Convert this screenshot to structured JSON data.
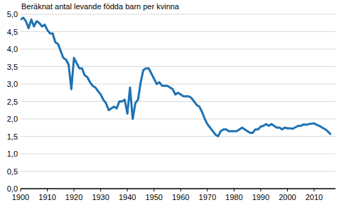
{
  "chart_data": {
    "type": "line",
    "title": "Beräknat antal levande födda barn per kvinna",
    "x": [
      1900,
      1901,
      1902,
      1903,
      1904,
      1905,
      1906,
      1907,
      1908,
      1909,
      1910,
      1911,
      1912,
      1913,
      1914,
      1915,
      1916,
      1917,
      1918,
      1919,
      1920,
      1921,
      1922,
      1923,
      1924,
      1925,
      1926,
      1927,
      1928,
      1929,
      1930,
      1931,
      1932,
      1933,
      1934,
      1935,
      1936,
      1937,
      1938,
      1939,
      1940,
      1941,
      1942,
      1943,
      1944,
      1945,
      1946,
      1947,
      1948,
      1949,
      1950,
      1951,
      1952,
      1953,
      1954,
      1955,
      1956,
      1957,
      1958,
      1959,
      1960,
      1961,
      1962,
      1963,
      1964,
      1965,
      1966,
      1967,
      1968,
      1969,
      1970,
      1971,
      1972,
      1973,
      1974,
      1975,
      1976,
      1977,
      1978,
      1979,
      1980,
      1981,
      1982,
      1983,
      1984,
      1985,
      1986,
      1987,
      1988,
      1989,
      1990,
      1991,
      1992,
      1993,
      1994,
      1995,
      1996,
      1997,
      1998,
      1999,
      2000,
      2001,
      2002,
      2003,
      2004,
      2005,
      2006,
      2007,
      2008,
      2009,
      2010,
      2011,
      2012,
      2013,
      2014,
      2015,
      2016
    ],
    "values": [
      4.85,
      4.9,
      4.8,
      4.6,
      4.85,
      4.65,
      4.8,
      4.75,
      4.65,
      4.7,
      4.55,
      4.45,
      4.45,
      4.2,
      4.15,
      3.95,
      3.75,
      3.7,
      3.55,
      2.85,
      3.75,
      3.6,
      3.45,
      3.45,
      3.25,
      3.2,
      3.05,
      2.95,
      2.9,
      2.8,
      2.7,
      2.55,
      2.45,
      2.25,
      2.3,
      2.35,
      2.3,
      2.5,
      2.5,
      2.55,
      2.15,
      2.9,
      2.0,
      2.45,
      2.55,
      3.05,
      3.4,
      3.45,
      3.45,
      3.3,
      3.15,
      3.0,
      3.05,
      2.95,
      2.95,
      2.95,
      2.9,
      2.85,
      2.7,
      2.75,
      2.7,
      2.65,
      2.65,
      2.65,
      2.6,
      2.5,
      2.4,
      2.35,
      2.2,
      2.0,
      1.85,
      1.75,
      1.65,
      1.55,
      1.5,
      1.65,
      1.7,
      1.7,
      1.65,
      1.65,
      1.65,
      1.65,
      1.7,
      1.75,
      1.7,
      1.65,
      1.6,
      1.6,
      1.7,
      1.7,
      1.78,
      1.8,
      1.85,
      1.8,
      1.85,
      1.8,
      1.75,
      1.75,
      1.7,
      1.75,
      1.73,
      1.73,
      1.72,
      1.76,
      1.8,
      1.8,
      1.84,
      1.83,
      1.85,
      1.86,
      1.87,
      1.83,
      1.8,
      1.75,
      1.71,
      1.65,
      1.57
    ],
    "color": "#1f72b3",
    "xlim": [
      1900,
      2018
    ],
    "xticks": [
      1900,
      1910,
      1920,
      1930,
      1940,
      1950,
      1960,
      1970,
      1980,
      1990,
      2000,
      2010
    ],
    "ylim": [
      0,
      5
    ],
    "yticks": [
      {
        "value": 0,
        "label": "0,0"
      },
      {
        "value": 0.5,
        "label": "0,5"
      },
      {
        "value": 1,
        "label": "1,0"
      },
      {
        "value": 1.5,
        "label": "1,5"
      },
      {
        "value": 2,
        "label": "2,0"
      },
      {
        "value": 2.5,
        "label": "2,5"
      },
      {
        "value": 3,
        "label": "3,0"
      },
      {
        "value": 3.5,
        "label": "3,5"
      },
      {
        "value": 4,
        "label": "4,0"
      },
      {
        "value": 4.5,
        "label": "4,5"
      },
      {
        "value": 5,
        "label": "5,0"
      }
    ],
    "grid": true
  }
}
